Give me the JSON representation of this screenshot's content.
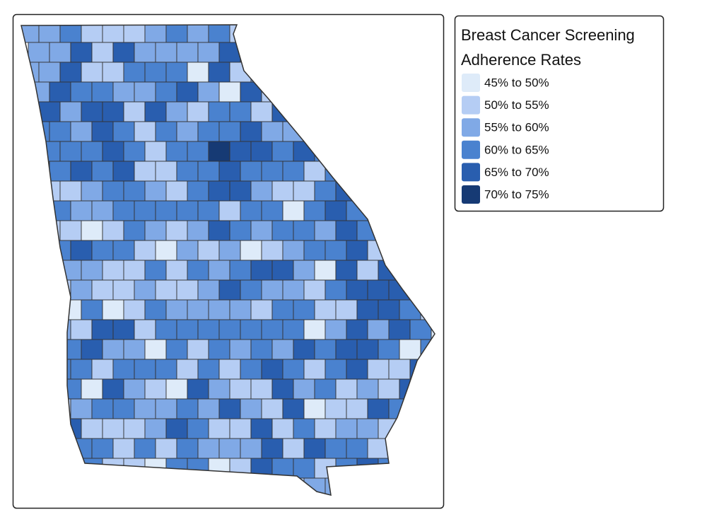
{
  "legend": {
    "title_lines": [
      "Breast Cancer Screening",
      "Adherence Rates"
    ],
    "items": [
      {
        "label": "45% to 50%",
        "color": "#deebf9"
      },
      {
        "label": "50% to 55%",
        "color": "#b5cdf4"
      },
      {
        "label": "55% to 60%",
        "color": "#80a9e6"
      },
      {
        "label": "60% to 65%",
        "color": "#4a82cf"
      },
      {
        "label": "65% to 70%",
        "color": "#295eaf"
      },
      {
        "label": "70% to 75%",
        "color": "#163a74"
      }
    ]
  }
}
